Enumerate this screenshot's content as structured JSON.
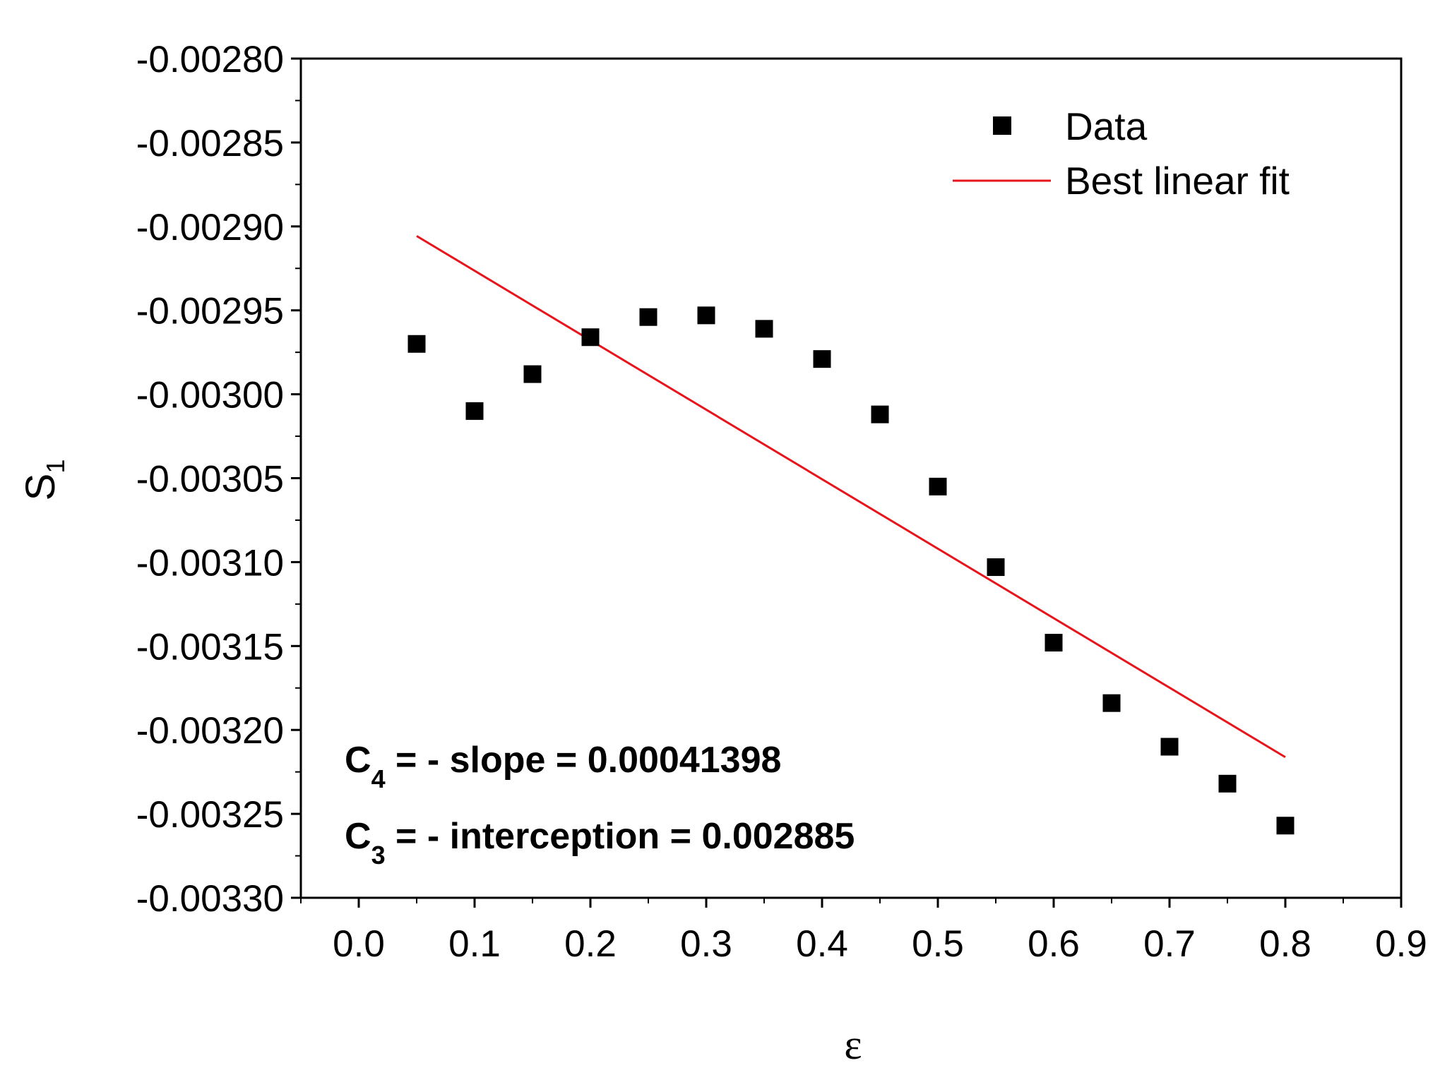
{
  "chart_data": {
    "type": "scatter",
    "title": "",
    "xlabel": "ε",
    "ylabel_main": "S",
    "ylabel_sub": "1",
    "xlim": [
      -0.05,
      0.9
    ],
    "ylim": [
      -0.0033,
      -0.0028
    ],
    "x_ticks": [
      0.0,
      0.1,
      0.2,
      0.3,
      0.4,
      0.5,
      0.6,
      0.7,
      0.8,
      0.9
    ],
    "x_tick_labels": [
      "0.0",
      "0.1",
      "0.2",
      "0.3",
      "0.4",
      "0.5",
      "0.6",
      "0.7",
      "0.8",
      "0.9"
    ],
    "y_ticks": [
      -0.0028,
      -0.00285,
      -0.0029,
      -0.00295,
      -0.003,
      -0.00305,
      -0.0031,
      -0.00315,
      -0.0032,
      -0.00325,
      -0.0033
    ],
    "y_tick_labels": [
      "-0.00280",
      "-0.00285",
      "-0.00290",
      "-0.00295",
      "-0.00300",
      "-0.00305",
      "-0.00310",
      "-0.00315",
      "-0.00320",
      "-0.00325",
      "-0.00330"
    ],
    "series": [
      {
        "name": "Data",
        "kind": "scatter",
        "marker": "square",
        "color": "#000000",
        "x": [
          0.05,
          0.1,
          0.15,
          0.2,
          0.25,
          0.3,
          0.35,
          0.4,
          0.45,
          0.5,
          0.55,
          0.6,
          0.65,
          0.7,
          0.75,
          0.8
        ],
        "y": [
          -0.00297,
          -0.00301,
          -0.002988,
          -0.002966,
          -0.002954,
          -0.002953,
          -0.002961,
          -0.002979,
          -0.003012,
          -0.003055,
          -0.003103,
          -0.003148,
          -0.003184,
          -0.00321,
          -0.003232,
          -0.003257
        ]
      },
      {
        "name": "Best linear fit",
        "kind": "line",
        "color": "#e8141b",
        "x": [
          0.05,
          0.8
        ],
        "y": [
          -0.0029057,
          -0.0032162
        ]
      }
    ],
    "legend": {
      "position": "top-right",
      "entries": [
        "Data",
        "Best linear fit"
      ]
    },
    "annotations": [
      {
        "main": "C",
        "sub": "4",
        "rest": " = - slope =  0.00041398"
      },
      {
        "main": "C",
        "sub": "3",
        "rest": " = - interception = 0.002885"
      }
    ]
  }
}
